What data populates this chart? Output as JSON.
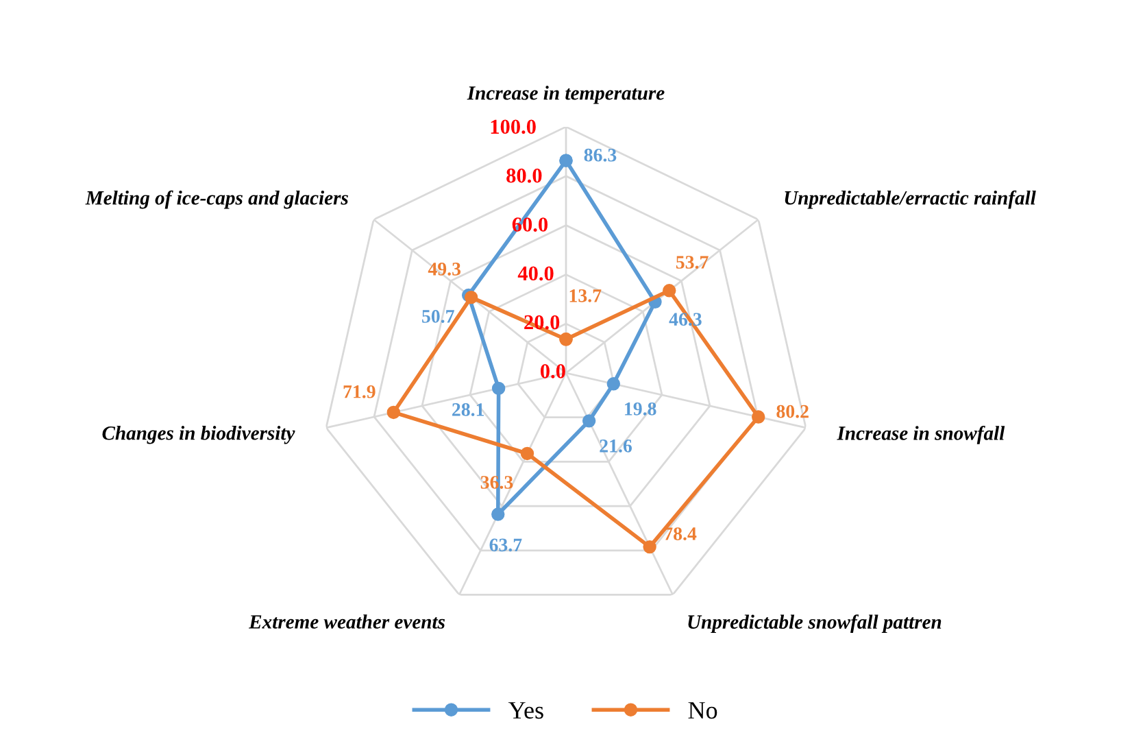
{
  "chart_data": {
    "type": "radar",
    "categories": [
      "Increase in temperature",
      "Unpredictable/erractic rainfall",
      "Increase in snowfall",
      "Unpredictable snowfall pattren",
      "Extreme weather events",
      "Changes in biodiversity",
      "Melting of ice-caps and glaciers"
    ],
    "series": [
      {
        "name": "Yes",
        "color": "#5b9bd5",
        "values": [
          86.3,
          46.3,
          19.8,
          21.6,
          63.7,
          28.1,
          50.7
        ]
      },
      {
        "name": "No",
        "color": "#ed7d31",
        "values": [
          13.7,
          53.7,
          80.2,
          78.4,
          36.3,
          71.9,
          49.3
        ]
      }
    ],
    "ylim": [
      0,
      100
    ],
    "yticks": [
      {
        "value": 0,
        "label": "0.0"
      },
      {
        "value": 20,
        "label": "20.0"
      },
      {
        "value": 40,
        "label": "40.0"
      },
      {
        "value": 60,
        "label": "60.0"
      },
      {
        "value": 80,
        "label": "80.0"
      },
      {
        "value": 100,
        "label": "100.0"
      }
    ],
    "grid": true,
    "legend": "bottom",
    "marker": "circle",
    "line_style": "solid",
    "data_labels": true
  }
}
